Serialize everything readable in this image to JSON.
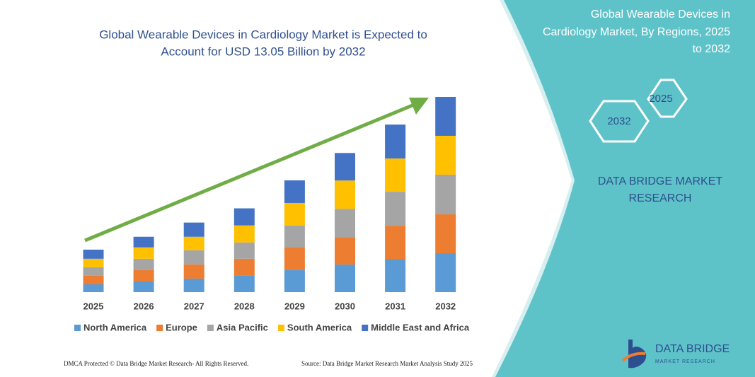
{
  "chart_data": {
    "type": "bar",
    "stacked": true,
    "title": [
      "Global Wearable Devices in Cardiology Market is Expected to",
      "Account for USD 13.05 Billion by 2032"
    ],
    "categories": [
      "2025",
      "2026",
      "2027",
      "2028",
      "2029",
      "2030",
      "2031",
      "2032"
    ],
    "series": [
      {
        "name": "North America",
        "color": "#5b9bd5",
        "values": [
          0.52,
          0.71,
          0.9,
          1.09,
          1.47,
          1.84,
          2.22,
          2.6
        ]
      },
      {
        "name": "Europe",
        "color": "#ed7d31",
        "values": [
          0.57,
          0.76,
          0.95,
          1.14,
          1.51,
          1.84,
          2.22,
          2.6
        ]
      },
      {
        "name": "Asia Pacific",
        "color": "#a5a5a5",
        "values": [
          0.57,
          0.76,
          0.95,
          1.09,
          1.47,
          1.89,
          2.27,
          2.65
        ]
      },
      {
        "name": "South America",
        "color": "#ffc000",
        "values": [
          0.57,
          0.76,
          0.9,
          1.14,
          1.51,
          1.89,
          2.22,
          2.6
        ]
      },
      {
        "name": "Middle East and Africa",
        "color": "#4472c4",
        "values": [
          0.61,
          0.71,
          0.95,
          1.14,
          1.51,
          1.84,
          2.27,
          2.6
        ]
      }
    ],
    "legend": "bottom"
  },
  "side_panel": {
    "title": [
      "Global Wearable Devices in",
      "Cardiology Market, By Regions, 2025",
      "to 2032"
    ],
    "hexagons": [
      "2025",
      "2032"
    ],
    "brand": [
      "DATA BRIDGE MARKET",
      "RESEARCH"
    ]
  },
  "logo": {
    "name": "DATA BRIDGE",
    "tagline": "MARKET RESEARCH"
  },
  "footer": {
    "left": "DMCA Protected © Data Bridge Market Research- All Rights Reserved.",
    "right": "Source: Data Bridge Market Research Market Analysis Study 2025"
  }
}
